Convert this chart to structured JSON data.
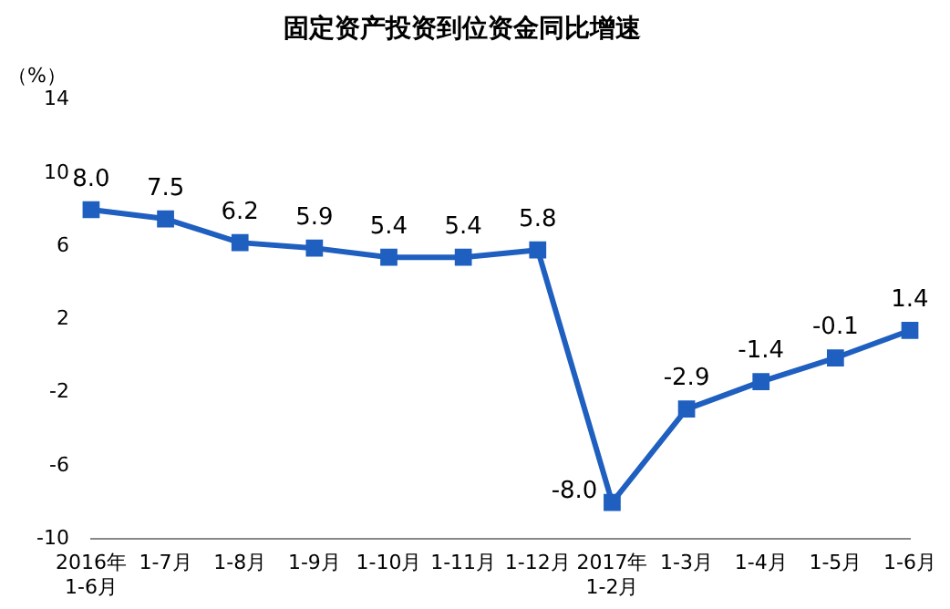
{
  "chart_data": {
    "type": "line",
    "title": "固定资产投资到位资金同比增速",
    "ylabel": "（%）",
    "categories": [
      "2016年\n1-6月",
      "1-7月",
      "1-8月",
      "1-9月",
      "1-10月",
      "1-11月",
      "1-12月",
      "2017年\n1-2月",
      "1-3月",
      "1-4月",
      "1-5月",
      "1-6月"
    ],
    "series": [
      {
        "color": "#1f5fbf",
        "values": [
          8.0,
          7.5,
          6.2,
          5.9,
          5.4,
          5.4,
          5.8,
          -8.0,
          -2.9,
          -1.4,
          -0.1,
          1.4
        ]
      }
    ],
    "value_labels": [
      "8.0",
      "7.5",
      "6.2",
      "5.9",
      "5.4",
      "5.4",
      "5.8",
      "-8.0",
      "-2.9",
      "-1.4",
      "-0.1",
      "1.4"
    ],
    "ylim": [
      -10,
      14
    ],
    "yticks": [
      -10,
      -6,
      -2,
      2,
      6,
      10,
      14
    ],
    "grid": false,
    "legend": false,
    "marker": "square",
    "line_style": "solid"
  }
}
